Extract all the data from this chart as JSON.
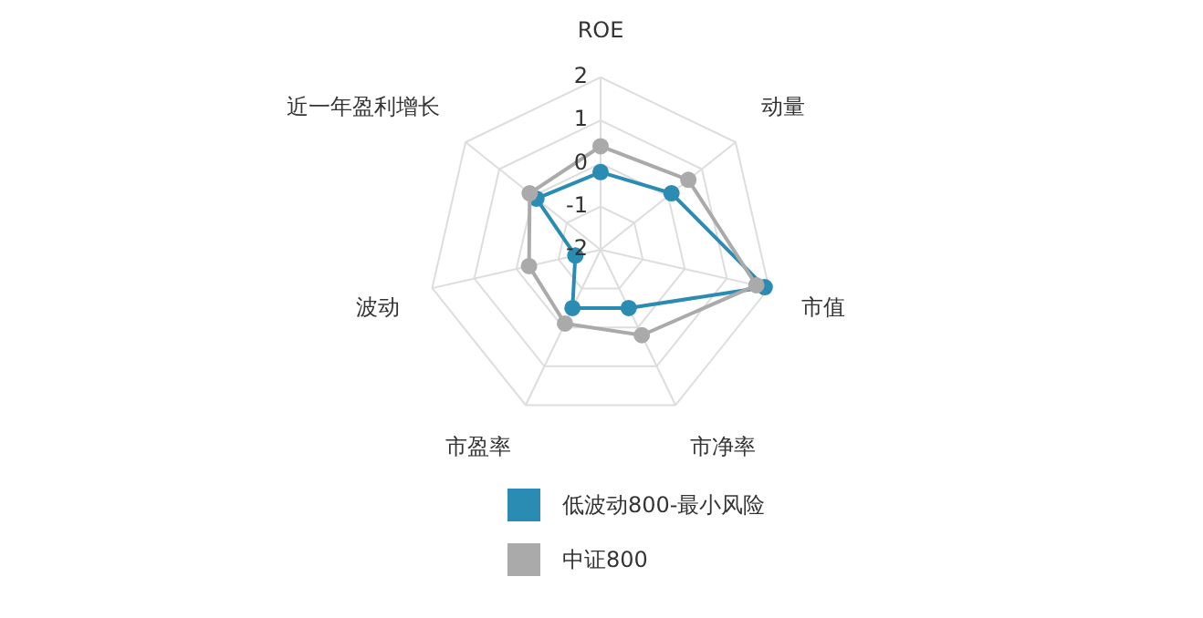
{
  "chart_data": {
    "type": "radar",
    "categories": [
      "ROE",
      "动量",
      "市值",
      "市净率",
      "市盈率",
      "波动",
      "近一年盈利增长"
    ],
    "series": [
      {
        "name": "低波动800-最小风险",
        "color": "#2b8cb3",
        "values": [
          -0.2,
          0.1,
          1.9,
          -0.5,
          -0.5,
          -1.4,
          -0.1
        ]
      },
      {
        "name": "中证800",
        "color": "#aaaaaa",
        "values": [
          0.4,
          0.6,
          1.7,
          0.2,
          -0.1,
          -0.3,
          0.1
        ]
      }
    ],
    "ylim": [
      -2,
      2
    ],
    "yticks": [
      -2,
      -1,
      0,
      1,
      2
    ],
    "grid": true,
    "legend": "bottom",
    "marker": "circle"
  }
}
